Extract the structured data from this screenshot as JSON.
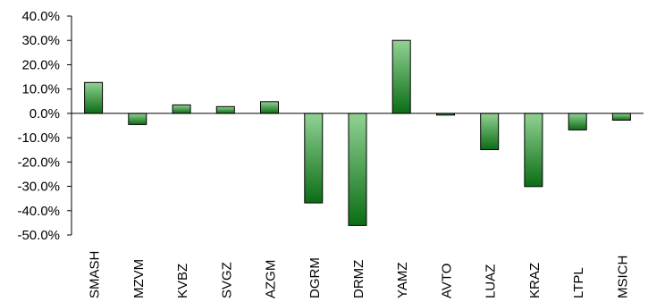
{
  "chart_data": {
    "type": "bar",
    "title": "",
    "xlabel": "",
    "ylabel": "",
    "ylim": [
      -50,
      40
    ],
    "y_ticks": [
      40,
      30,
      20,
      10,
      0,
      -10,
      -20,
      -30,
      -40,
      -50
    ],
    "y_tick_labels": [
      "40.0%",
      "30.0%",
      "20.0%",
      "10.0%",
      "0.0%",
      "-10.0%",
      "-20.0%",
      "-30.0%",
      "-40.0%",
      "-50.0%"
    ],
    "y_unit": "%",
    "grid": false,
    "legend": "none",
    "categories": [
      "SMASH",
      "MZVM",
      "KVBZ",
      "SVGZ",
      "AZGM",
      "DGRM",
      "DRMZ",
      "YAMZ",
      "AVTO",
      "LUAZ",
      "KRAZ",
      "LTPL",
      "MSICH"
    ],
    "values": [
      12.7,
      -4.6,
      3.5,
      2.8,
      4.8,
      -36.8,
      -46.1,
      30.0,
      -0.7,
      -14.9,
      -30.1,
      -6.8,
      -2.8
    ],
    "colors": {
      "bar_dark": "#0b6d15",
      "bar_light": "#92d294",
      "bar_stroke": "#000000",
      "axis": "#000000"
    }
  }
}
